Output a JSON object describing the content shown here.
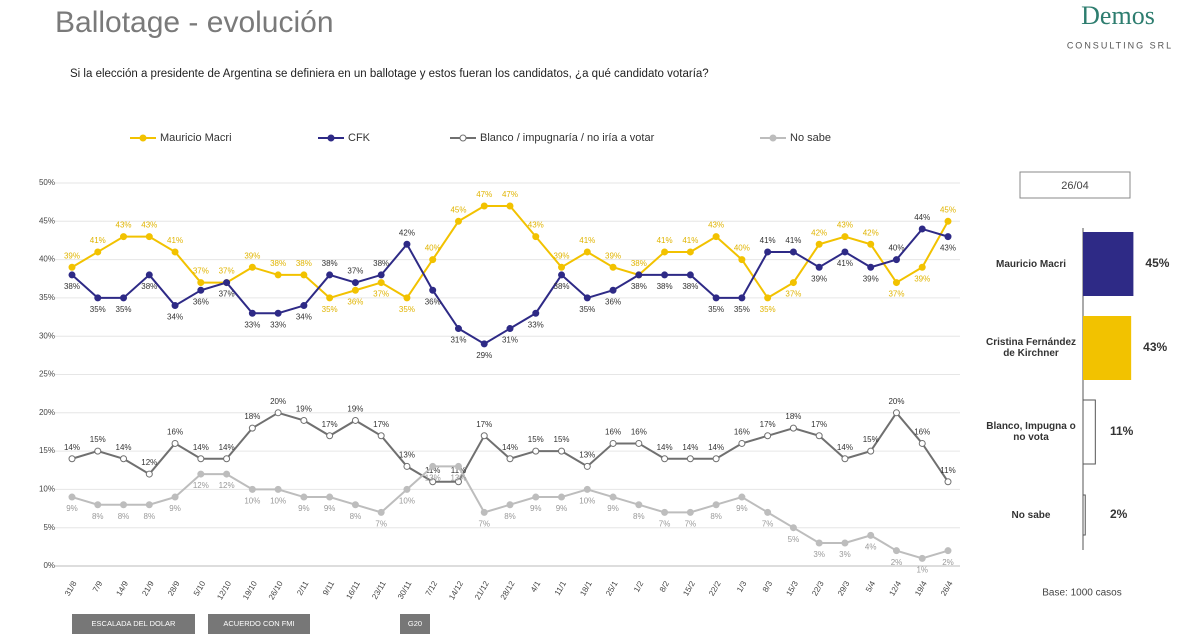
{
  "header": {
    "title": "Ballotage  - evolución",
    "logo": "Demos",
    "logo_sub": "CONSULTING SRL",
    "question": "Si la elección a presidente de Argentina se definiera en un ballotage y estos fueran los candidatos, ¿a qué candidato votaría?"
  },
  "chart_data": [
    {
      "type": "line",
      "categories": [
        "31/8",
        "7/9",
        "14/9",
        "21/9",
        "28/9",
        "5/10",
        "12/10",
        "19/10",
        "26/10",
        "2/11",
        "9/11",
        "16/11",
        "23/11",
        "30/11",
        "7/12",
        "14/12",
        "21/12",
        "28/12",
        "4/1",
        "11/1",
        "18/1",
        "25/1",
        "1/2",
        "8/2",
        "15/2",
        "22/2",
        "1/3",
        "8/3",
        "15/3",
        "22/3",
        "29/3",
        "5/4",
        "12/4",
        "19/4",
        "26/4"
      ],
      "ylim": [
        0,
        50
      ],
      "yticks": [
        {
          "value": 0,
          "label": "0%"
        },
        {
          "value": 5,
          "label": "5%"
        },
        {
          "value": 10,
          "label": "10%"
        },
        {
          "value": 15,
          "label": "15%"
        },
        {
          "value": 20,
          "label": "20%"
        },
        {
          "value": 25,
          "label": "25%"
        },
        {
          "value": 30,
          "label": "30%"
        },
        {
          "value": 35,
          "label": "35%"
        },
        {
          "value": 40,
          "label": "40%"
        },
        {
          "value": 45,
          "label": "45%"
        },
        {
          "value": 50,
          "label": "50%"
        }
      ],
      "grid": true,
      "series": [
        {
          "name": "Mauricio Macri",
          "color": "#f2c200",
          "values": [
            39,
            41,
            43,
            43,
            41,
            37,
            37,
            39,
            38,
            38,
            35,
            36,
            37,
            35,
            40,
            45,
            47,
            47,
            43,
            39,
            41,
            39,
            38,
            41,
            41,
            43,
            40,
            35,
            37,
            42,
            43,
            42,
            37,
            39,
            45
          ],
          "value_labels": [
            "39%",
            "41%",
            "43%",
            "43%",
            "41%",
            "37%",
            "37%",
            "39%",
            "38%",
            "38%",
            "35%",
            "36%",
            "37%",
            "35%",
            "40%",
            "45%",
            "47%",
            "47%",
            "43%",
            "39%",
            "41%",
            "39%",
            "38%",
            "41%",
            "41%",
            "43%",
            "40%",
            "35%",
            "37%",
            "42%",
            "43%",
            "42%",
            "37%",
            "39%",
            "45%"
          ]
        },
        {
          "name": "CFK",
          "color": "#2e2a86",
          "values": [
            38,
            35,
            35,
            38,
            34,
            36,
            37,
            33,
            33,
            34,
            38,
            37,
            38,
            42,
            36,
            31,
            29,
            31,
            33,
            38,
            35,
            36,
            38,
            38,
            38,
            35,
            35,
            41,
            41,
            39,
            41,
            39,
            40,
            44,
            43
          ],
          "value_labels": [
            "38%",
            "35%",
            "35%",
            "38%",
            "34%",
            "36%",
            "37%",
            "33%",
            "33%",
            "34%",
            "38%",
            "37%",
            "38%",
            "42%",
            "36%",
            "31%",
            "29%",
            "31%",
            "33%",
            "38%",
            "35%",
            "36%",
            "38%",
            "38%",
            "38%",
            "35%",
            "35%",
            "41%",
            "41%",
            "39%",
            "41%",
            "39%",
            "40%",
            "44%",
            "43%"
          ]
        },
        {
          "name": "Blanco / impugnaría / no iría a votar",
          "color": "#707070",
          "values": [
            14,
            15,
            14,
            12,
            16,
            14,
            14,
            18,
            20,
            19,
            17,
            19,
            17,
            13,
            11,
            11,
            17,
            14,
            15,
            15,
            13,
            16,
            16,
            14,
            14,
            14,
            16,
            17,
            18,
            17,
            14,
            15,
            20,
            16,
            11
          ],
          "value_labels": [
            "14%",
            "15%",
            "14%",
            "12%",
            "16%",
            "14%",
            "14%",
            "18%",
            "20%",
            "19%",
            "17%",
            "19%",
            "17%",
            "13%",
            "11%",
            "11%",
            "17%",
            "14%",
            "15%",
            "15%",
            "13%",
            "16%",
            "16%",
            "14%",
            "14%",
            "14%",
            "16%",
            "17%",
            "18%",
            "17%",
            "14%",
            "15%",
            "20%",
            "16%",
            "11%"
          ]
        },
        {
          "name": "No sabe",
          "color": "#bdbdbd",
          "values": [
            9,
            8,
            8,
            8,
            9,
            12,
            12,
            10,
            10,
            9,
            9,
            8,
            7,
            10,
            13,
            13,
            7,
            8,
            9,
            9,
            10,
            9,
            8,
            7,
            7,
            8,
            9,
            7,
            5,
            3,
            3,
            4,
            2,
            1,
            2
          ],
          "value_labels": [
            "9%",
            "8%",
            "8%",
            "8%",
            "9%",
            "12%",
            "12%",
            "10%",
            "10%",
            "9%",
            "9%",
            "8%",
            "7%",
            "10%",
            "13%",
            "13%",
            "7%",
            "8%",
            "9%",
            "9%",
            "10%",
            "9%",
            "8%",
            "7%",
            "7%",
            "8%",
            "9%",
            "7%",
            "5%",
            "3%",
            "3%",
            "4%",
            "2%",
            "1%",
            "2%"
          ]
        }
      ],
      "annotations": [
        "ESCALADA DEL DOLAR",
        "ACUERDO CON FMI",
        "G20"
      ]
    },
    {
      "type": "barh",
      "title": "26/04",
      "categories": [
        "Mauricio Macri",
        "Cristina Fernández de Kirchner",
        "Blanco, Impugna o no vota",
        "No sabe"
      ],
      "values": [
        45,
        43,
        11,
        2
      ],
      "value_labels": [
        "45%",
        "43%",
        "11%",
        "2%"
      ],
      "colors": [
        "#2e2a86",
        "#f2c200",
        "#ffffff",
        "#ffffff"
      ],
      "note": "Base: 1000 casos"
    }
  ]
}
